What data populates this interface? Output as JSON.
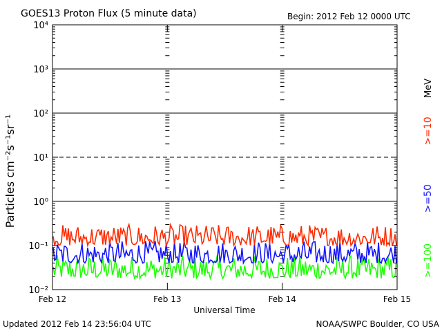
{
  "header": {
    "title": "GOES13 Proton Flux (5 minute data)",
    "begin": "Begin: 2012 Feb 12 0000 UTC"
  },
  "footer": {
    "updated": "Updated 2012 Feb 14 23:56:04 UTC",
    "source": "NOAA/SWPC Boulder, CO USA"
  },
  "colors": {
    "background": "#ffffff",
    "axes": "#000000",
    "ge10": "#ff2a00",
    "ge50": "#1414ff",
    "ge100": "#1cff00"
  },
  "chart_data": {
    "type": "line",
    "title": "GOES13 Proton Flux (5 minute data)",
    "xlabel": "Universal Time",
    "ylabel": "Particles cm⁻²s⁻¹sr⁻¹",
    "yscale": "log",
    "ylim": [
      0.01,
      10000
    ],
    "y_ticks": [
      {
        "value": 0.01,
        "label": "10⁻²"
      },
      {
        "value": 0.1,
        "label": "10⁻¹"
      },
      {
        "value": 1,
        "label": "10⁰"
      },
      {
        "value": 10,
        "label": "10¹"
      },
      {
        "value": 100,
        "label": "10²"
      },
      {
        "value": 1000,
        "label": "10³"
      },
      {
        "value": 10000,
        "label": "10⁴"
      }
    ],
    "categories": [
      "Feb 12",
      "Feb 13",
      "Feb 14",
      "Feb 15"
    ],
    "threshold_lines": [
      {
        "value": 1,
        "style": "solid"
      },
      {
        "value": 10,
        "style": "dashed"
      },
      {
        "value": 100,
        "style": "solid"
      },
      {
        "value": 1000,
        "style": "solid"
      }
    ],
    "legend_unit": "MeV",
    "legend_placement": "right",
    "series": [
      {
        "name": ">=10",
        "color": "#ff2a00",
        "typical_range": [
          0.1,
          0.3
        ]
      },
      {
        "name": ">=50",
        "color": "#1414ff",
        "typical_range": [
          0.04,
          0.13
        ]
      },
      {
        "name": ">=100",
        "color": "#1cff00",
        "typical_range": [
          0.018,
          0.06
        ]
      }
    ]
  }
}
